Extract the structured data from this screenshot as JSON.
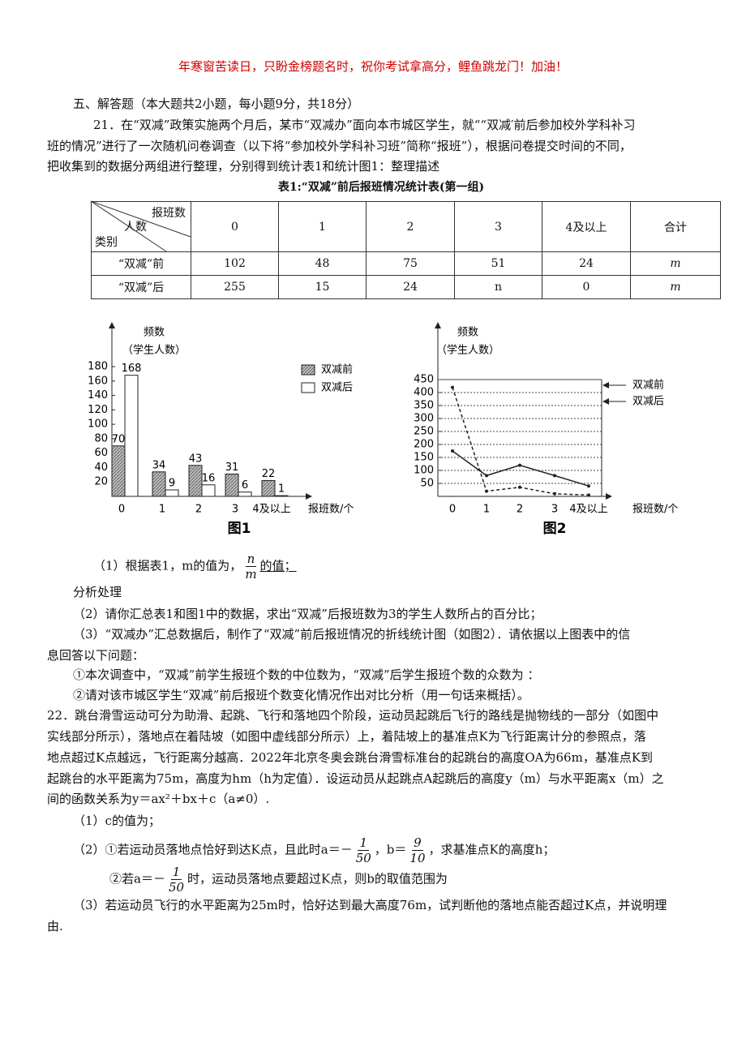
{
  "header": {
    "banner": "年寒窗苦读日，只盼金榜题名时，祝你考试拿高分，鲤鱼跳龙门！加油！"
  },
  "section": "五、解答题（本大题共2小题，每小题9分，共18分）",
  "q21": {
    "lines": [
      "21．在“双减”政策实施两个月后，某市“双减办”面向本市城区学生，就““双减′前后参加校外学科补习",
      "班的情况”进行了一次随机问卷调查（以下将“参加校外学科补习班”简称“报班”），根据问卷提交时间的不同，",
      "把收集到的数据分两组进行整理，分别得到统计表1和统计图1：整理描述"
    ]
  },
  "table": {
    "caption": "表1:“双减”前后报班情况统计表(第一组)",
    "corner": [
      "报班数",
      "人数",
      "类别"
    ],
    "columns": [
      "0",
      "1",
      "2",
      "3",
      "4及以上",
      "合计"
    ],
    "rows": [
      [
        "“双减”前",
        "102",
        "48",
        "75",
        "51",
        "24",
        "m"
      ],
      [
        "“双减”后",
        "255",
        "15",
        "24",
        "n",
        "0",
        "m"
      ]
    ]
  },
  "chart_data": [
    {
      "type": "bar",
      "caption": "图1",
      "y_label": [
        "频数",
        "（学生人数）"
      ],
      "x_label": "报班数/个",
      "categories": [
        "0",
        "1",
        "2",
        "3",
        "4及以上"
      ],
      "series": [
        {
          "name": "双减前",
          "color": "#9a9a9a",
          "values": [
            70,
            34,
            43,
            31,
            22
          ]
        },
        {
          "name": "双减后",
          "color": "#ffffff",
          "values": [
            168,
            9,
            16,
            6,
            1
          ]
        }
      ],
      "ylim": [
        0,
        180
      ],
      "yticks": [
        20,
        40,
        60,
        80,
        100,
        120,
        140,
        160,
        180
      ],
      "legend": "top-right"
    },
    {
      "type": "line",
      "caption": "图2",
      "y_label": [
        "频数",
        "（学生人数）"
      ],
      "x_label": "报班数/个",
      "categories": [
        "0",
        "1",
        "2",
        "3",
        "4及以上"
      ],
      "series": [
        {
          "name": "双减前",
          "color": "#222222",
          "values": [
            175,
            80,
            120,
            80,
            40
          ]
        },
        {
          "name": "双减后",
          "color": "#222222",
          "values": [
            420,
            20,
            35,
            10,
            5
          ]
        }
      ],
      "ylim": [
        0,
        450
      ],
      "yticks": [
        50,
        100,
        150,
        200,
        250,
        300,
        350,
        400,
        450
      ],
      "grid": true,
      "legend": "right"
    }
  ],
  "q21_parts": {
    "p1": {
      "prefix": "（1）根据表1，m的值为，",
      "num": "n",
      "den": "m",
      "suffix": "的值；"
    },
    "analysis": "分析处理",
    "p2": "（2）请你汇总表1和图1中的数据，求出“双减”后报班数为3的学生人数所占的百分比；",
    "p3": [
      "（3）“双减办”汇总数据后，制作了“双减”前后报班情况的折线统计图（如图2）．请依据以上图表中的信",
      "息回答以下问题："
    ],
    "p3a": "①本次调查中，“双减”前学生报班个数的中位数为，“双减”后学生报班个数的众数为 ：",
    "p3b": "②请对该市城区学生“双减”前后报班个数变化情况作出对比分析（用一句话来概括）。"
  },
  "q22": {
    "lines": [
      "22．跳台滑雪运动可分为助滑、起跳、飞行和落地四个阶段，运动员起跳后飞行的路线是抛物线的一部分（如图中",
      "实线部分所示），落地点在着陆坡（如图中虚线部分所示）上，着陆坡上的基准点K为飞行距离计分的参照点，落",
      "地点超过K点越远，飞行距离分越高．2022年北京冬奥会跳台滑雪标准台的起跳台的高度OA为66m，基准点K到",
      "起跳台的水平距离为75m，高度为hm（h为定值）．设运动员从起跳点A起跳后的高度y（m）与水平距离x（m）之",
      "间的函数关系为y＝ax²＋bx＋c（a≠0）."
    ],
    "p1": "（1）c的值为；",
    "p2a": {
      "t1": "（2）①若运动员落地点恰好到达K点，且此时a＝－",
      "f1n": "1",
      "f1d": "50",
      "t2": "，b＝",
      "f2n": "9",
      "f2d": "10",
      "t3": "，求基准点K的高度h；"
    },
    "p2b": {
      "t1": "②若a＝－",
      "fn": "1",
      "fd": "50",
      "t2": "时，运动员落地点要超过K点，则b的取值范围为"
    },
    "p3": [
      "（3）若运动员飞行的水平距离为25m时，恰好达到最大高度76m，试判断他的落地点能否超过K点，并说明理",
      "由."
    ]
  }
}
